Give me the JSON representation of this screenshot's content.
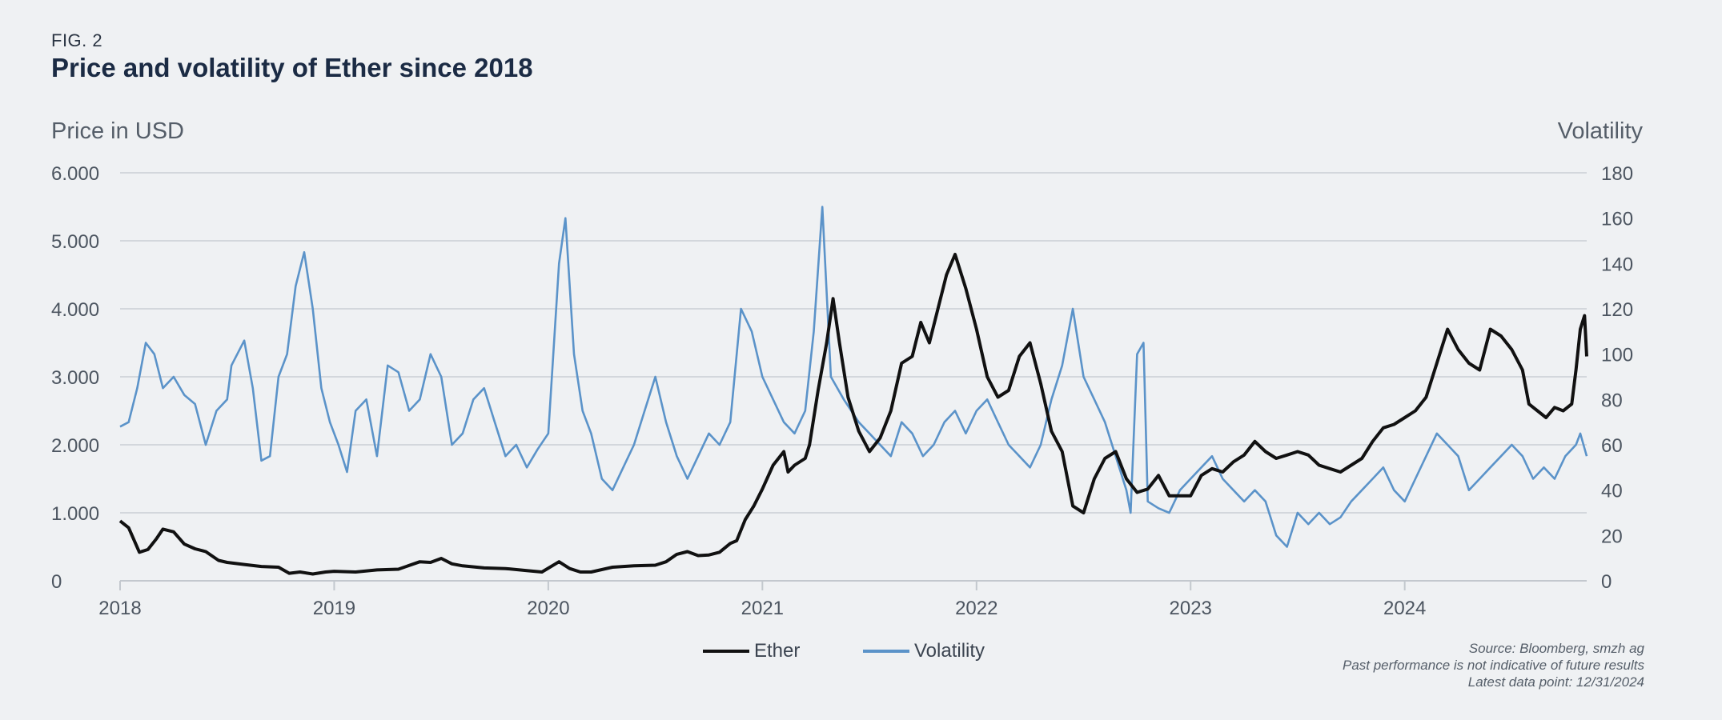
{
  "figure": {
    "label": "FIG. 2",
    "title": "Price and volatility of Ether since 2018"
  },
  "source_lines": [
    "Source: Bloomberg, smzh ag",
    "Past performance is not indicative of future results",
    "Latest data point: 12/31/2024"
  ],
  "chart_data": {
    "type": "line",
    "title": "Price and volatility of Ether since 2018",
    "x_axis": {
      "min": 2018.0,
      "max": 2024.85,
      "ticks": [
        2018,
        2019,
        2020,
        2021,
        2022,
        2023,
        2024
      ],
      "tick_labels": [
        "2018",
        "2019",
        "2020",
        "2021",
        "2022",
        "2023",
        "2024"
      ]
    },
    "y_left": {
      "label": "Price in USD",
      "min": 0,
      "max": 6000,
      "ticks": [
        0,
        1000,
        2000,
        3000,
        4000,
        5000,
        6000
      ],
      "tick_labels": [
        "0",
        "1.000",
        "2.000",
        "3.000",
        "4.000",
        "5.000",
        "6.000"
      ]
    },
    "y_right": {
      "label": "Volatility",
      "min": 0,
      "max": 180,
      "ticks": [
        0,
        20,
        40,
        60,
        80,
        100,
        120,
        140,
        160,
        180
      ],
      "tick_labels": [
        "0",
        "20",
        "40",
        "60",
        "80",
        "100",
        "120",
        "140",
        "160",
        "180"
      ]
    },
    "grid": true,
    "legend_position": "bottom-center",
    "series": [
      {
        "name": "Ether",
        "axis": "left",
        "color": "#111111",
        "points": [
          [
            2018.0,
            880
          ],
          [
            2018.04,
            780
          ],
          [
            2018.09,
            420
          ],
          [
            2018.13,
            460
          ],
          [
            2018.17,
            620
          ],
          [
            2018.2,
            760
          ],
          [
            2018.25,
            720
          ],
          [
            2018.3,
            540
          ],
          [
            2018.35,
            470
          ],
          [
            2018.4,
            430
          ],
          [
            2018.46,
            300
          ],
          [
            2018.5,
            270
          ],
          [
            2018.58,
            240
          ],
          [
            2018.66,
            210
          ],
          [
            2018.74,
            200
          ],
          [
            2018.79,
            110
          ],
          [
            2018.84,
            130
          ],
          [
            2018.9,
            100
          ],
          [
            2018.96,
            130
          ],
          [
            2019.0,
            140
          ],
          [
            2019.1,
            130
          ],
          [
            2019.2,
            160
          ],
          [
            2019.3,
            170
          ],
          [
            2019.4,
            280
          ],
          [
            2019.45,
            270
          ],
          [
            2019.5,
            330
          ],
          [
            2019.55,
            250
          ],
          [
            2019.6,
            220
          ],
          [
            2019.7,
            190
          ],
          [
            2019.8,
            180
          ],
          [
            2019.9,
            150
          ],
          [
            2019.97,
            130
          ],
          [
            2020.05,
            280
          ],
          [
            2020.1,
            180
          ],
          [
            2020.15,
            130
          ],
          [
            2020.2,
            130
          ],
          [
            2020.3,
            200
          ],
          [
            2020.4,
            220
          ],
          [
            2020.5,
            230
          ],
          [
            2020.55,
            280
          ],
          [
            2020.6,
            390
          ],
          [
            2020.65,
            430
          ],
          [
            2020.7,
            370
          ],
          [
            2020.75,
            380
          ],
          [
            2020.8,
            420
          ],
          [
            2020.85,
            550
          ],
          [
            2020.88,
            590
          ],
          [
            2020.92,
            900
          ],
          [
            2020.96,
            1100
          ],
          [
            2021.0,
            1350
          ],
          [
            2021.05,
            1700
          ],
          [
            2021.1,
            1900
          ],
          [
            2021.12,
            1600
          ],
          [
            2021.15,
            1700
          ],
          [
            2021.2,
            1800
          ],
          [
            2021.22,
            2000
          ],
          [
            2021.26,
            2800
          ],
          [
            2021.3,
            3500
          ],
          [
            2021.33,
            4150
          ],
          [
            2021.36,
            3500
          ],
          [
            2021.4,
            2700
          ],
          [
            2021.45,
            2200
          ],
          [
            2021.5,
            1900
          ],
          [
            2021.55,
            2100
          ],
          [
            2021.6,
            2500
          ],
          [
            2021.65,
            3200
          ],
          [
            2021.7,
            3300
          ],
          [
            2021.74,
            3800
          ],
          [
            2021.78,
            3500
          ],
          [
            2021.82,
            4000
          ],
          [
            2021.86,
            4500
          ],
          [
            2021.9,
            4800
          ],
          [
            2021.95,
            4300
          ],
          [
            2022.0,
            3700
          ],
          [
            2022.05,
            3000
          ],
          [
            2022.1,
            2700
          ],
          [
            2022.15,
            2800
          ],
          [
            2022.2,
            3300
          ],
          [
            2022.25,
            3500
          ],
          [
            2022.3,
            2900
          ],
          [
            2022.35,
            2200
          ],
          [
            2022.4,
            1900
          ],
          [
            2022.45,
            1100
          ],
          [
            2022.5,
            1000
          ],
          [
            2022.55,
            1500
          ],
          [
            2022.6,
            1800
          ],
          [
            2022.65,
            1900
          ],
          [
            2022.7,
            1500
          ],
          [
            2022.75,
            1300
          ],
          [
            2022.8,
            1350
          ],
          [
            2022.85,
            1550
          ],
          [
            2022.9,
            1250
          ],
          [
            2023.0,
            1250
          ],
          [
            2023.05,
            1550
          ],
          [
            2023.1,
            1650
          ],
          [
            2023.15,
            1600
          ],
          [
            2023.2,
            1750
          ],
          [
            2023.25,
            1850
          ],
          [
            2023.3,
            2050
          ],
          [
            2023.35,
            1900
          ],
          [
            2023.4,
            1800
          ],
          [
            2023.45,
            1850
          ],
          [
            2023.5,
            1900
          ],
          [
            2023.55,
            1850
          ],
          [
            2023.6,
            1700
          ],
          [
            2023.65,
            1650
          ],
          [
            2023.7,
            1600
          ],
          [
            2023.75,
            1700
          ],
          [
            2023.8,
            1800
          ],
          [
            2023.85,
            2050
          ],
          [
            2023.9,
            2250
          ],
          [
            2023.95,
            2300
          ],
          [
            2024.0,
            2400
          ],
          [
            2024.05,
            2500
          ],
          [
            2024.1,
            2700
          ],
          [
            2024.15,
            3200
          ],
          [
            2024.2,
            3700
          ],
          [
            2024.25,
            3400
          ],
          [
            2024.3,
            3200
          ],
          [
            2024.35,
            3100
          ],
          [
            2024.4,
            3700
          ],
          [
            2024.45,
            3600
          ],
          [
            2024.5,
            3400
          ],
          [
            2024.55,
            3100
          ],
          [
            2024.58,
            2600
          ],
          [
            2024.62,
            2500
          ],
          [
            2024.66,
            2400
          ],
          [
            2024.7,
            2550
          ],
          [
            2024.74,
            2500
          ],
          [
            2024.78,
            2600
          ],
          [
            2024.8,
            3100
          ],
          [
            2024.82,
            3700
          ],
          [
            2024.84,
            3900
          ],
          [
            2024.85,
            3300
          ]
        ]
      },
      {
        "name": "Volatility",
        "axis": "right",
        "color": "#5b93c9",
        "points": [
          [
            2018.0,
            68
          ],
          [
            2018.04,
            70
          ],
          [
            2018.08,
            85
          ],
          [
            2018.12,
            105
          ],
          [
            2018.16,
            100
          ],
          [
            2018.2,
            85
          ],
          [
            2018.25,
            90
          ],
          [
            2018.3,
            82
          ],
          [
            2018.35,
            78
          ],
          [
            2018.4,
            60
          ],
          [
            2018.45,
            75
          ],
          [
            2018.5,
            80
          ],
          [
            2018.52,
            95
          ],
          [
            2018.58,
            106
          ],
          [
            2018.62,
            85
          ],
          [
            2018.66,
            53
          ],
          [
            2018.7,
            55
          ],
          [
            2018.74,
            90
          ],
          [
            2018.78,
            100
          ],
          [
            2018.82,
            130
          ],
          [
            2018.86,
            145
          ],
          [
            2018.9,
            120
          ],
          [
            2018.94,
            85
          ],
          [
            2018.98,
            70
          ],
          [
            2019.02,
            60
          ],
          [
            2019.06,
            48
          ],
          [
            2019.1,
            75
          ],
          [
            2019.15,
            80
          ],
          [
            2019.2,
            55
          ],
          [
            2019.25,
            95
          ],
          [
            2019.3,
            92
          ],
          [
            2019.35,
            75
          ],
          [
            2019.4,
            80
          ],
          [
            2019.45,
            100
          ],
          [
            2019.5,
            90
          ],
          [
            2019.55,
            60
          ],
          [
            2019.6,
            65
          ],
          [
            2019.65,
            80
          ],
          [
            2019.7,
            85
          ],
          [
            2019.75,
            70
          ],
          [
            2019.8,
            55
          ],
          [
            2019.85,
            60
          ],
          [
            2019.9,
            50
          ],
          [
            2019.95,
            58
          ],
          [
            2020.0,
            65
          ],
          [
            2020.05,
            140
          ],
          [
            2020.08,
            160
          ],
          [
            2020.12,
            100
          ],
          [
            2020.16,
            75
          ],
          [
            2020.2,
            65
          ],
          [
            2020.25,
            45
          ],
          [
            2020.3,
            40
          ],
          [
            2020.35,
            50
          ],
          [
            2020.4,
            60
          ],
          [
            2020.45,
            75
          ],
          [
            2020.5,
            90
          ],
          [
            2020.55,
            70
          ],
          [
            2020.6,
            55
          ],
          [
            2020.65,
            45
          ],
          [
            2020.7,
            55
          ],
          [
            2020.75,
            65
          ],
          [
            2020.8,
            60
          ],
          [
            2020.85,
            70
          ],
          [
            2020.9,
            120
          ],
          [
            2020.95,
            110
          ],
          [
            2021.0,
            90
          ],
          [
            2021.05,
            80
          ],
          [
            2021.1,
            70
          ],
          [
            2021.15,
            65
          ],
          [
            2021.2,
            75
          ],
          [
            2021.24,
            110
          ],
          [
            2021.28,
            165
          ],
          [
            2021.32,
            90
          ],
          [
            2021.38,
            80
          ],
          [
            2021.45,
            70
          ],
          [
            2021.5,
            65
          ],
          [
            2021.55,
            60
          ],
          [
            2021.6,
            55
          ],
          [
            2021.65,
            70
          ],
          [
            2021.7,
            65
          ],
          [
            2021.75,
            55
          ],
          [
            2021.8,
            60
          ],
          [
            2021.85,
            70
          ],
          [
            2021.9,
            75
          ],
          [
            2021.95,
            65
          ],
          [
            2022.0,
            75
          ],
          [
            2022.05,
            80
          ],
          [
            2022.1,
            70
          ],
          [
            2022.15,
            60
          ],
          [
            2022.2,
            55
          ],
          [
            2022.25,
            50
          ],
          [
            2022.3,
            60
          ],
          [
            2022.35,
            80
          ],
          [
            2022.4,
            95
          ],
          [
            2022.45,
            120
          ],
          [
            2022.5,
            90
          ],
          [
            2022.55,
            80
          ],
          [
            2022.6,
            70
          ],
          [
            2022.65,
            55
          ],
          [
            2022.7,
            40
          ],
          [
            2022.72,
            30
          ],
          [
            2022.75,
            100
          ],
          [
            2022.78,
            105
          ],
          [
            2022.8,
            35
          ],
          [
            2022.85,
            32
          ],
          [
            2022.9,
            30
          ],
          [
            2022.95,
            40
          ],
          [
            2023.0,
            45
          ],
          [
            2023.05,
            50
          ],
          [
            2023.1,
            55
          ],
          [
            2023.15,
            45
          ],
          [
            2023.2,
            40
          ],
          [
            2023.25,
            35
          ],
          [
            2023.3,
            40
          ],
          [
            2023.35,
            35
          ],
          [
            2023.4,
            20
          ],
          [
            2023.45,
            15
          ],
          [
            2023.5,
            30
          ],
          [
            2023.55,
            25
          ],
          [
            2023.6,
            30
          ],
          [
            2023.65,
            25
          ],
          [
            2023.7,
            28
          ],
          [
            2023.75,
            35
          ],
          [
            2023.8,
            40
          ],
          [
            2023.85,
            45
          ],
          [
            2023.9,
            50
          ],
          [
            2023.95,
            40
          ],
          [
            2024.0,
            35
          ],
          [
            2024.05,
            45
          ],
          [
            2024.1,
            55
          ],
          [
            2024.15,
            65
          ],
          [
            2024.2,
            60
          ],
          [
            2024.25,
            55
          ],
          [
            2024.3,
            40
          ],
          [
            2024.35,
            45
          ],
          [
            2024.4,
            50
          ],
          [
            2024.45,
            55
          ],
          [
            2024.5,
            60
          ],
          [
            2024.55,
            55
          ],
          [
            2024.6,
            45
          ],
          [
            2024.65,
            50
          ],
          [
            2024.7,
            45
          ],
          [
            2024.75,
            55
          ],
          [
            2024.8,
            60
          ],
          [
            2024.82,
            65
          ],
          [
            2024.85,
            55
          ]
        ]
      }
    ]
  }
}
